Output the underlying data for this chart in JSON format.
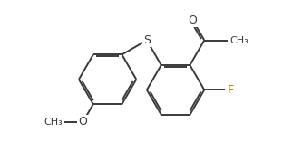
{
  "bg_color": "#ffffff",
  "bond_color": "#3a3a3a",
  "label_S": "S",
  "label_O_carbonyl": "O",
  "label_O_methoxy": "O",
  "label_F": "F",
  "label_CH3_acetyl": "CH₃",
  "color_S": "#3a3a3a",
  "color_O": "#3a3a3a",
  "color_F": "#c87800",
  "color_CH3": "#3a3a3a",
  "line_width": 1.4,
  "dbl_sep": 0.035,
  "font_size": 9,
  "font_size_small": 8
}
